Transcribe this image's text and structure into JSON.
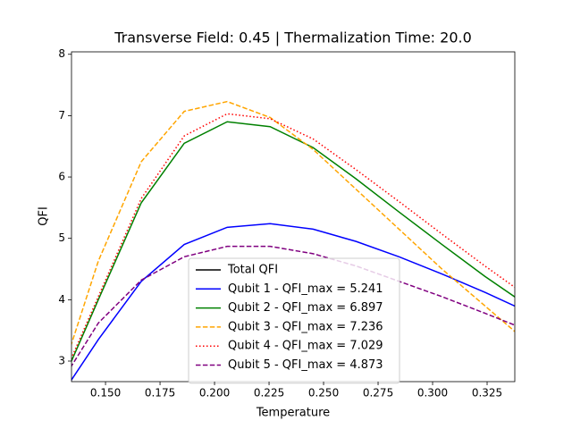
{
  "chart_data": {
    "type": "line",
    "title": "Transverse Field: 0.45 | Thermalization Time: 20.0",
    "xlabel": "Temperature",
    "ylabel": "QFI",
    "x": [
      0.127,
      0.1467,
      0.1664,
      0.1861,
      0.2058,
      0.2255,
      0.2452,
      0.2649,
      0.2846,
      0.3043,
      0.324,
      0.3437
    ],
    "series": [
      {
        "name": "Total QFI",
        "color": "#000000",
        "linestyle": "solid",
        "values": [
          null,
          null,
          null,
          null,
          null,
          null,
          null,
          null,
          null,
          null,
          null,
          null
        ]
      },
      {
        "name": "Qubit 1 - QFI_max = 5.241",
        "color": "#0000ff",
        "linestyle": "solid",
        "values": [
          2.3,
          3.35,
          4.3,
          4.9,
          5.18,
          5.24,
          5.15,
          4.95,
          4.7,
          4.42,
          4.12,
          3.8
        ]
      },
      {
        "name": "Qubit 2 - QFI_max = 6.897",
        "color": "#008000",
        "linestyle": "solid",
        "values": [
          2.4,
          4.0,
          5.58,
          6.55,
          6.9,
          6.82,
          6.48,
          5.97,
          5.43,
          4.9,
          4.38,
          3.9
        ]
      },
      {
        "name": "Qubit 3 - QFI_max = 7.236",
        "color": "#ffa500",
        "linestyle": "dashed",
        "values": [
          2.47,
          4.63,
          6.25,
          7.07,
          7.23,
          6.97,
          6.45,
          5.8,
          5.15,
          4.5,
          3.9,
          3.3
        ]
      },
      {
        "name": "Qubit 4 - QFI_max = 7.029",
        "color": "#ff0000",
        "linestyle": "dotted",
        "values": [
          2.45,
          4.05,
          5.65,
          6.67,
          7.03,
          6.95,
          6.62,
          6.12,
          5.6,
          5.07,
          4.55,
          4.05
        ]
      },
      {
        "name": "Qubit 5 - QFI_max = 4.873",
        "color": "#800080",
        "linestyle": "dashed",
        "values": [
          2.5,
          3.62,
          4.32,
          4.7,
          4.87,
          4.87,
          4.75,
          4.55,
          4.3,
          4.05,
          3.78,
          3.5
        ]
      }
    ],
    "xlim": [
      0.1344,
      0.3377
    ],
    "ylim": [
      2.665,
      8.04
    ],
    "xticks": [
      {
        "value": 0.15,
        "label": "0.150"
      },
      {
        "value": 0.175,
        "label": "0.175"
      },
      {
        "value": 0.2,
        "label": "0.200"
      },
      {
        "value": 0.225,
        "label": "0.225"
      },
      {
        "value": 0.25,
        "label": "0.250"
      },
      {
        "value": 0.275,
        "label": "0.275"
      },
      {
        "value": 0.3,
        "label": "0.300"
      },
      {
        "value": 0.325,
        "label": "0.325"
      }
    ],
    "yticks": [
      3,
      4,
      5,
      6,
      7,
      8
    ],
    "legend": "lower center"
  }
}
